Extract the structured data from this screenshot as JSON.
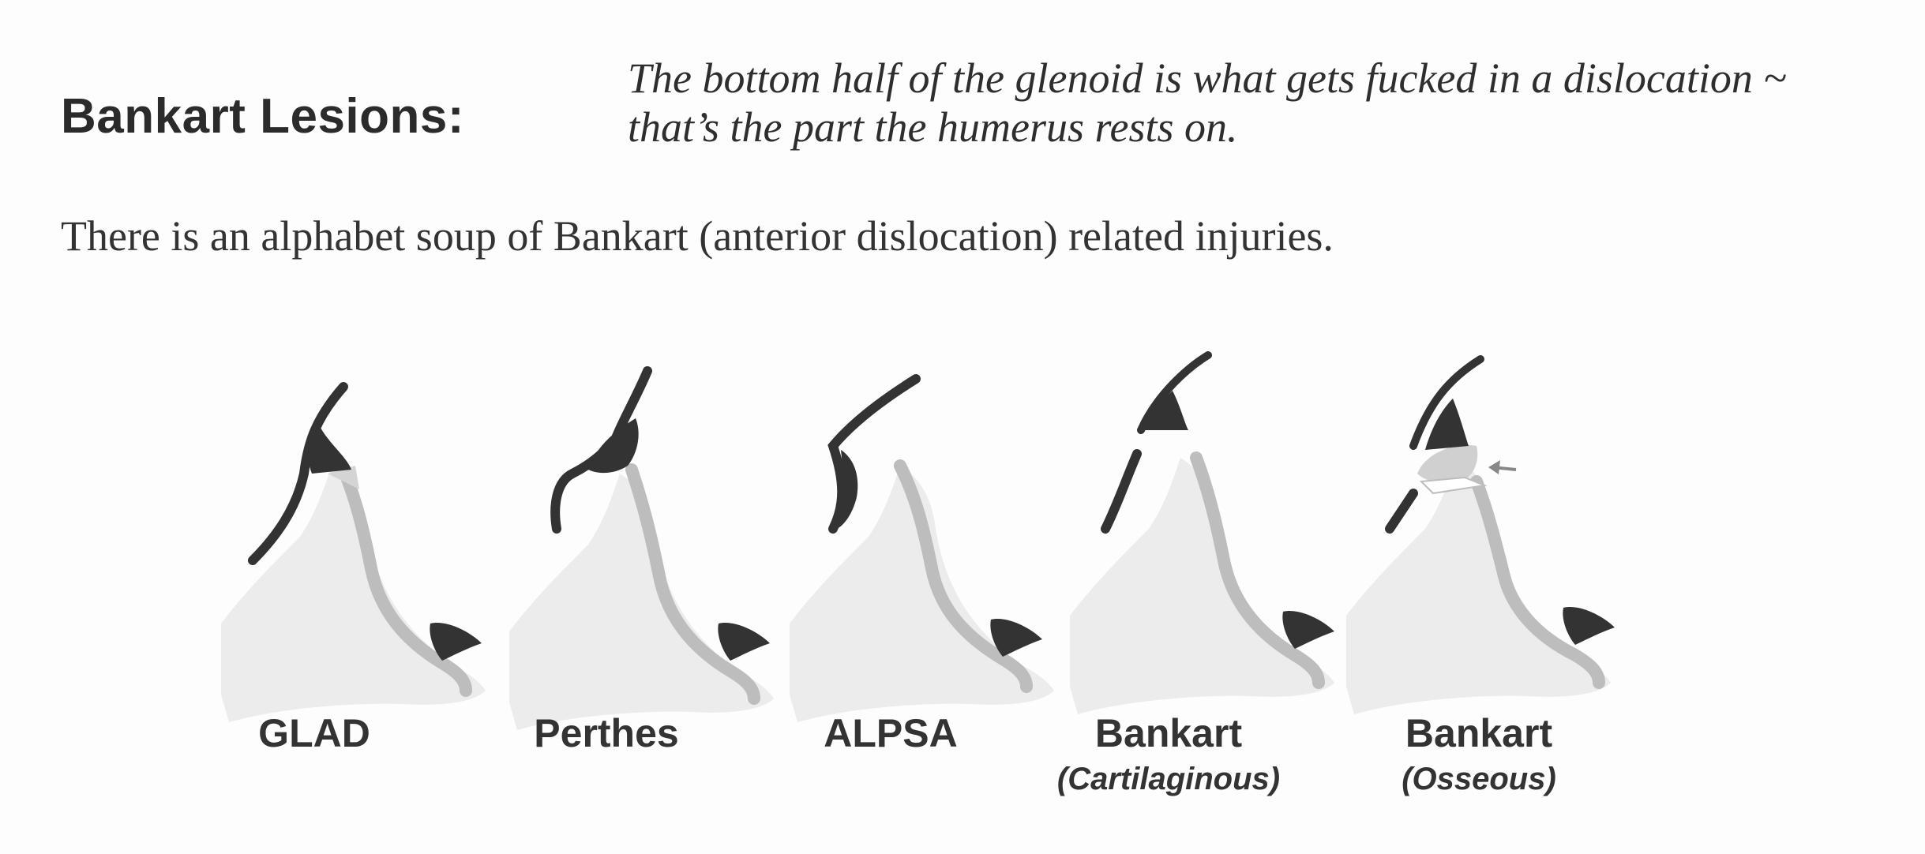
{
  "heading": "Bankart Lesions:",
  "note": {
    "line1": "The bottom half of the glenoid is what gets fucked in a dislocation ~",
    "line2": "that’s the part the humerus rests on."
  },
  "intro": "There is an alphabet soup of Bankart (anterior dislocation) related injuries.",
  "lesions": [
    {
      "label": "GLAD",
      "sublabel": ""
    },
    {
      "label": "Perthes",
      "sublabel": ""
    },
    {
      "label": "ALPSA",
      "sublabel": ""
    },
    {
      "label": "Bankart",
      "sublabel": "(Cartilaginous)"
    },
    {
      "label": "Bankart",
      "sublabel": "(Osseous)"
    }
  ],
  "colors": {
    "labrum": "#2f2f2f",
    "bone": "#ebebeb",
    "cartilage": "#bdbdbd",
    "text": "#333333"
  }
}
